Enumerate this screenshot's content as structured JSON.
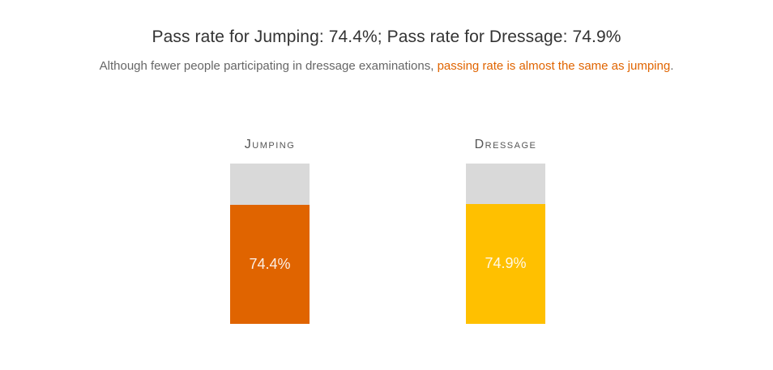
{
  "title": "Pass rate for Jumping: 74.4%; Pass rate for Dressage: 74.9%",
  "subtitle": {
    "prefix": "Although fewer people participating in dressage examinations, ",
    "highlight": "passing rate is almost the same as jumping",
    "suffix": "."
  },
  "colors": {
    "jumping": "#e06400",
    "dressage": "#ffc000",
    "track": "#d9d9d9",
    "highlight": "#e06400"
  },
  "chart_data": {
    "type": "bar",
    "categories": [
      "Jumping",
      "Dressage"
    ],
    "values": [
      74.4,
      74.9
    ],
    "value_labels": [
      "74.4%",
      "74.9%"
    ],
    "ylim": [
      0,
      100
    ],
    "unit": "%"
  }
}
